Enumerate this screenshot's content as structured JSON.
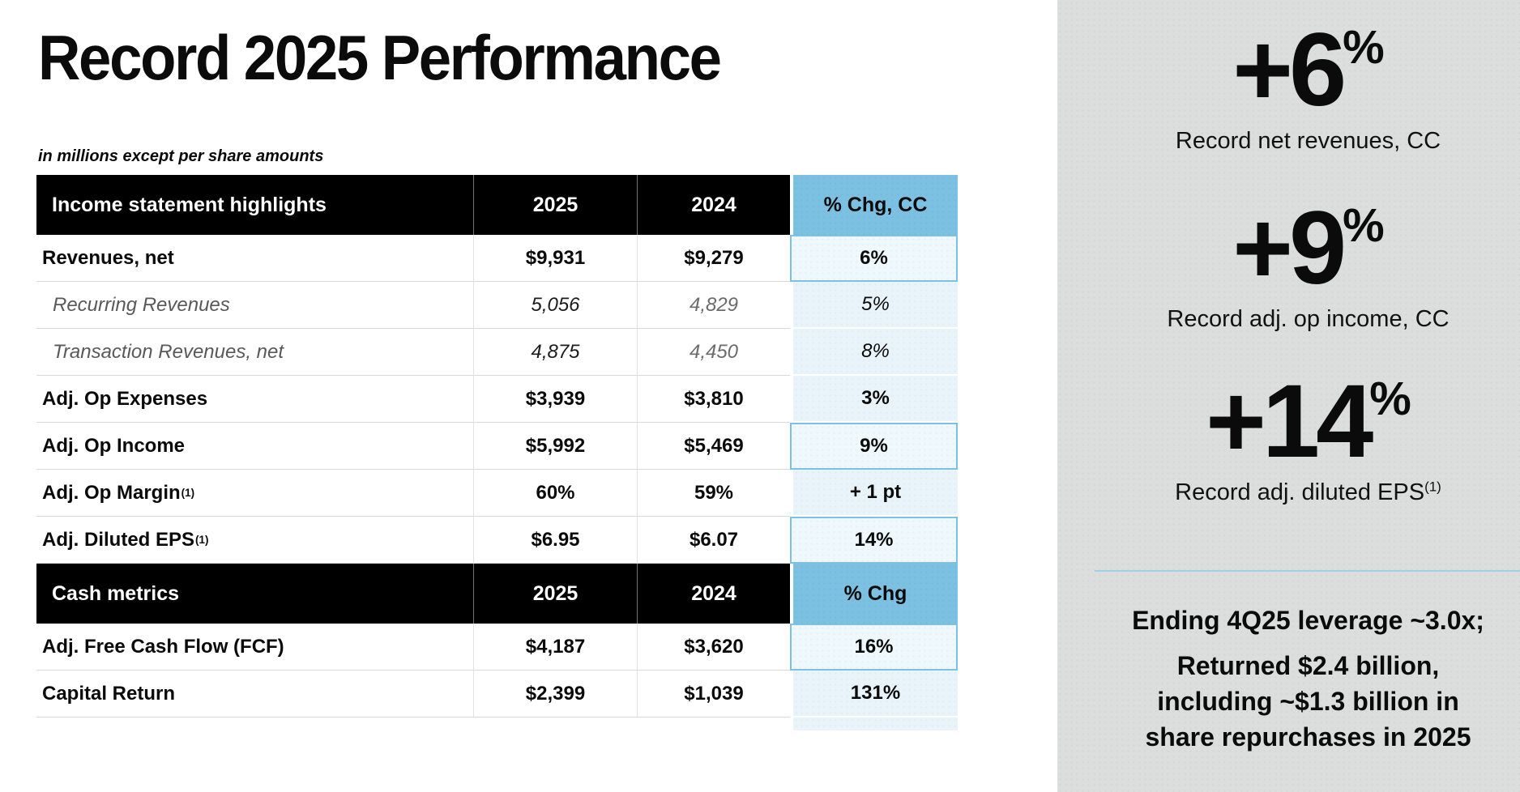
{
  "page": {
    "title": "Record 2025 Performance",
    "subtitle": "in millions except per share amounts"
  },
  "table": {
    "sections": [
      {
        "header": {
          "label": "Income statement highlights",
          "y2025": "2025",
          "y2024": "2024",
          "chg": "% Chg, CC"
        },
        "rows": [
          {
            "label": "Revenues, net",
            "sup": "",
            "v2025": "$9,931",
            "v2024": "$9,279",
            "chg": "6%",
            "style": "bold",
            "highlight": true
          },
          {
            "label": "Recurring Revenues",
            "sup": "",
            "v2025": "5,056",
            "v2024": "4,829",
            "chg": "5%",
            "style": "sub",
            "highlight": false
          },
          {
            "label": "Transaction Revenues, net",
            "sup": "",
            "v2025": "4,875",
            "v2024": "4,450",
            "chg": "8%",
            "style": "sub",
            "highlight": false
          },
          {
            "label": "Adj. Op Expenses",
            "sup": "",
            "v2025": "$3,939",
            "v2024": "$3,810",
            "chg": "3%",
            "style": "bold",
            "highlight": false
          },
          {
            "label": "Adj. Op Income",
            "sup": "",
            "v2025": "$5,992",
            "v2024": "$5,469",
            "chg": "9%",
            "style": "bold",
            "highlight": true
          },
          {
            "label": "Adj. Op Margin",
            "sup": "(1)",
            "v2025": "60%",
            "v2024": "59%",
            "chg": "+ 1 pt",
            "style": "bold",
            "highlight": false
          },
          {
            "label": "Adj. Diluted EPS",
            "sup": "(1)",
            "v2025": "$6.95",
            "v2024": "$6.07",
            "chg": "14%",
            "style": "bold",
            "highlight": true
          }
        ]
      },
      {
        "header": {
          "label": "Cash metrics",
          "y2025": "2025",
          "y2024": "2024",
          "chg": "% Chg"
        },
        "rows": [
          {
            "label": "Adj. Free Cash Flow (FCF)",
            "sup": "",
            "v2025": "$4,187",
            "v2024": "$3,620",
            "chg": "16%",
            "style": "bold",
            "highlight": true
          },
          {
            "label": "Capital Return",
            "sup": "",
            "v2025": "$2,399",
            "v2024": "$1,039",
            "chg": "131%",
            "style": "bold",
            "highlight": false
          }
        ]
      }
    ]
  },
  "sidebar": {
    "stats": [
      {
        "value": "+6",
        "unit": "%",
        "caption": "Record net revenues, CC",
        "caption_sup": ""
      },
      {
        "value": "+9",
        "unit": "%",
        "caption": "Record adj. op income, CC",
        "caption_sup": ""
      },
      {
        "value": "+14",
        "unit": "%",
        "caption": "Record adj. diluted EPS",
        "caption_sup": "(1)"
      }
    ],
    "notes": [
      {
        "lines": [
          "Ending 4Q25 leverage ~3.0x;"
        ]
      },
      {
        "lines": [
          "Returned $2.4 billion,",
          "including ~$1.3 billion in",
          "share repurchases in 2025"
        ]
      }
    ]
  },
  "colors": {
    "table_header_bg": "#000000",
    "accent_blue": "#7dc1e2",
    "light_blue_cell": "#e9f4fa",
    "sidebar_bg": "#dcdede",
    "divider_blue": "#9fd0e8",
    "muted_text": "#595959"
  }
}
